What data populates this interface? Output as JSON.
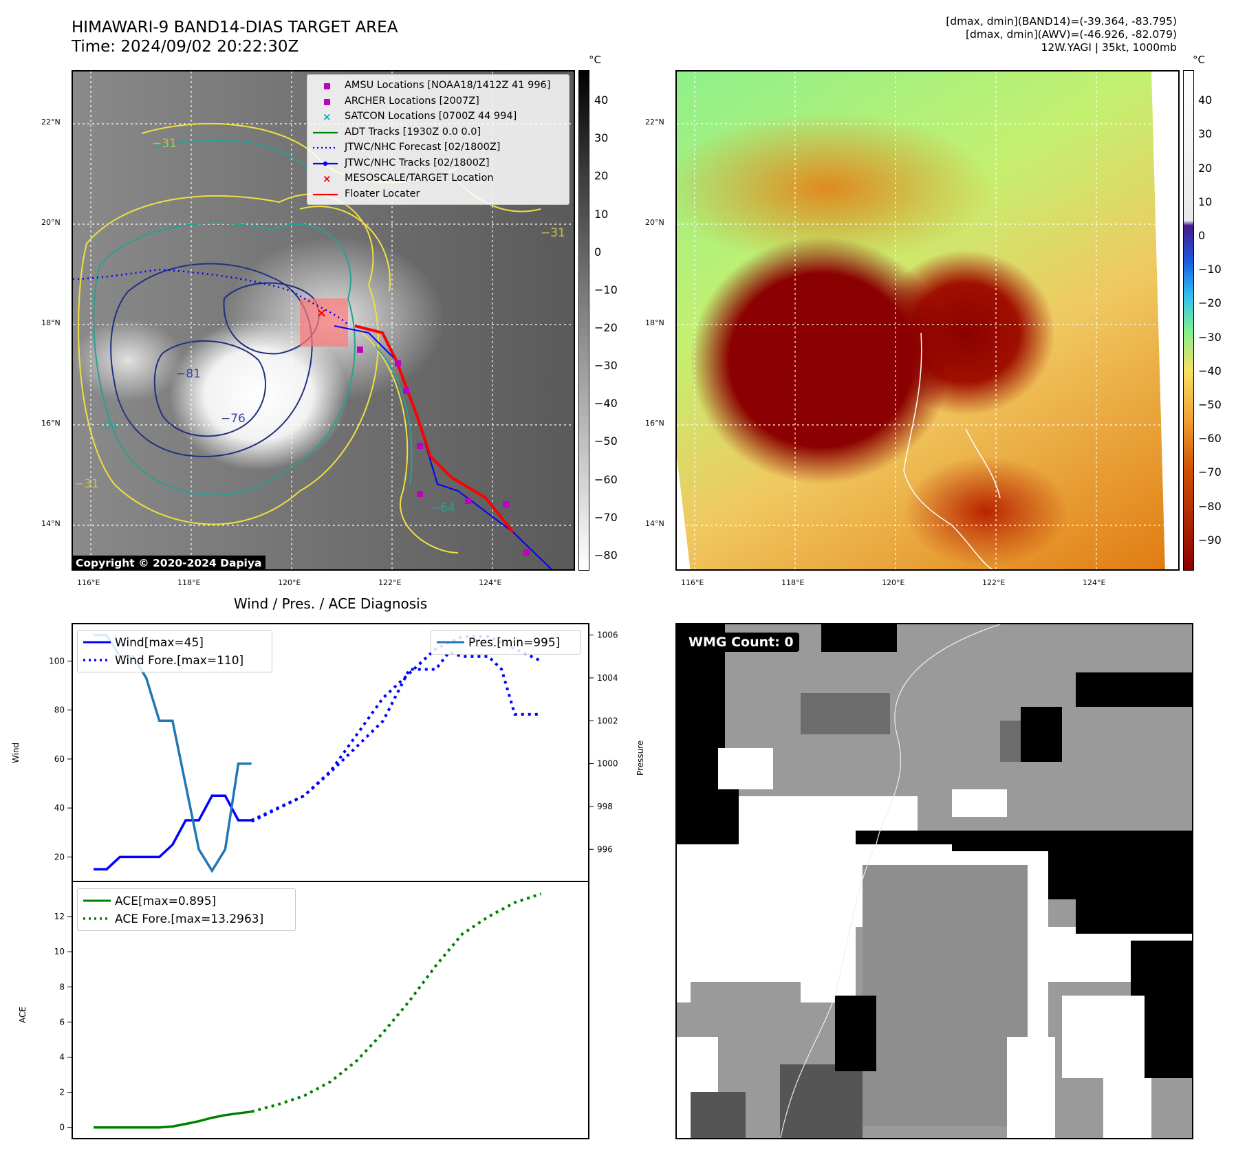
{
  "header": {
    "title_line1": "HIMAWARI-9 BAND14-DIAS TARGET AREA",
    "title_line2": "Time: 2024/09/02 20:22:30Z",
    "right_line1": "[dmax, dmin](BAND14)=(-39.364, -83.795)",
    "right_line2": "[dmax, dmin](AWV)=(-46.926, -82.079)",
    "right_line3": "12W.YAGI | 35kt, 1000mb"
  },
  "maps": {
    "lat_labels": [
      "22°N",
      "20°N",
      "18°N",
      "16°N",
      "14°N"
    ],
    "lon_labels": [
      "116°E",
      "118°E",
      "120°E",
      "122°E",
      "124°E"
    ],
    "copyright": "Copyright © 2020-2024 Dapiya",
    "ir_colorbar": {
      "unit": "°C",
      "ticks": [
        "40",
        "30",
        "20",
        "10",
        "0",
        "−10",
        "−20",
        "−30",
        "−40",
        "−50",
        "−60",
        "−70",
        "−80"
      ]
    },
    "awv_colorbar": {
      "unit": "°C",
      "ticks": [
        "40",
        "30",
        "20",
        "10",
        "0",
        "−10",
        "−20",
        "−30",
        "−40",
        "−50",
        "−60",
        "−70",
        "−80",
        "−90"
      ]
    },
    "contour_labels": [
      "−81",
      "−76",
      "−64",
      "−31",
      "−31",
      "−64",
      "−31"
    ],
    "legend": [
      {
        "label": "AMSU Locations [NOAA18/1412Z 41 996]",
        "symbol": "square",
        "color": "#c000c0"
      },
      {
        "label": "ARCHER Locations [2007Z]",
        "symbol": "square",
        "color": "#c000c0"
      },
      {
        "label": "SATCON Locations [0700Z 44 994]",
        "symbol": "x",
        "color": "#00b0c0"
      },
      {
        "label": "ADT Tracks [1930Z 0.0 0.0]",
        "symbol": "line",
        "color": "#008000"
      },
      {
        "label": "JTWC/NHC Forecast [02/1800Z]",
        "symbol": "dotted",
        "color": "#0000ff"
      },
      {
        "label": "JTWC/NHC Tracks [02/1800Z]",
        "symbol": "line-dot",
        "color": "#0000ff"
      },
      {
        "label": "MESOSCALE/TARGET Location",
        "symbol": "x",
        "color": "#ff0000"
      },
      {
        "label": "Floater Locater",
        "symbol": "line",
        "color": "#ff0000"
      }
    ],
    "wmg_badge": "WMG Count: 0"
  },
  "chart_data": [
    {
      "type": "line",
      "title": "Wind / Pres. / ACE Diagnosis",
      "ylabel": "Wind",
      "ylabel_right": "Pressure",
      "ylim": [
        10,
        115
      ],
      "ylim_right": [
        994.5,
        1006.5
      ],
      "y_ticks": [
        "20",
        "40",
        "60",
        "80",
        "100"
      ],
      "y_ticks_right": [
        "996",
        "998",
        "1000",
        "1002",
        "1004",
        "1006"
      ],
      "series": [
        {
          "name": "Wind[max=45]",
          "color": "#0000ff",
          "style": "solid",
          "x": [
            0,
            1,
            2,
            3,
            4,
            5,
            6,
            7,
            8,
            9,
            10,
            11,
            12
          ],
          "values": [
            15,
            15,
            20,
            20,
            20,
            20,
            25,
            35,
            35,
            45,
            45,
            35,
            35
          ]
        },
        {
          "name": "Wind Fore.[max=110]",
          "color": "#0000ff",
          "style": "dotted",
          "x": [
            12,
            14,
            16,
            18,
            20,
            22,
            24,
            26,
            28,
            30,
            32,
            34
          ],
          "values": [
            35,
            40,
            45,
            55,
            70,
            85,
            95,
            105,
            110,
            110,
            105,
            100
          ]
        },
        {
          "name": "Pres.[min=995]",
          "color": "#1f77b4",
          "style": "solid",
          "x": [
            0,
            1,
            2,
            3,
            4,
            5,
            6,
            7,
            8,
            9,
            10,
            11,
            12
          ],
          "values": [
            1006,
            1006,
            1005,
            1005,
            1004,
            1002,
            1002,
            999,
            996,
            995,
            996,
            1000,
            1000
          ]
        },
        {
          "name": "Pres.[min=995]",
          "color": "#0000ff",
          "style": "dotted",
          "x": [
            12,
            14,
            16,
            18,
            20,
            22,
            23,
            24,
            25,
            26,
            27,
            28,
            29,
            30,
            31,
            32,
            33,
            34
          ],
          "values": [
            997.3,
            997.9,
            998.5,
            999.6,
            1000.8,
            1002.0,
            1003.2,
            1004.4,
            1004.4,
            1004.4,
            1005.2,
            1005.0,
            1005.0,
            1005.0,
            1004.4,
            1002.3,
            1002.3,
            1002.3
          ]
        }
      ],
      "x_total": 36
    },
    {
      "type": "line",
      "ylabel": "ACE",
      "ylim": [
        -0.6,
        14
      ],
      "y_ticks": [
        "0",
        "2",
        "4",
        "6",
        "8",
        "10",
        "12"
      ],
      "series": [
        {
          "name": "ACE[max=0.895]",
          "color": "#008000",
          "style": "solid",
          "x": [
            0,
            1,
            2,
            3,
            4,
            5,
            6,
            7,
            8,
            9,
            10,
            11,
            12
          ],
          "values": [
            0,
            0,
            0,
            0,
            0,
            0,
            0.05,
            0.2,
            0.35,
            0.55,
            0.7,
            0.8,
            0.895
          ]
        },
        {
          "name": "ACE Fore.[max=13.2963]",
          "color": "#008000",
          "style": "dotted",
          "x": [
            12,
            14,
            16,
            18,
            20,
            22,
            24,
            26,
            28,
            30,
            32,
            34
          ],
          "values": [
            0.895,
            1.3,
            1.8,
            2.6,
            3.8,
            5.4,
            7.2,
            9.2,
            11.0,
            12.0,
            12.8,
            13.2963
          ]
        }
      ],
      "x_total": 36
    }
  ]
}
